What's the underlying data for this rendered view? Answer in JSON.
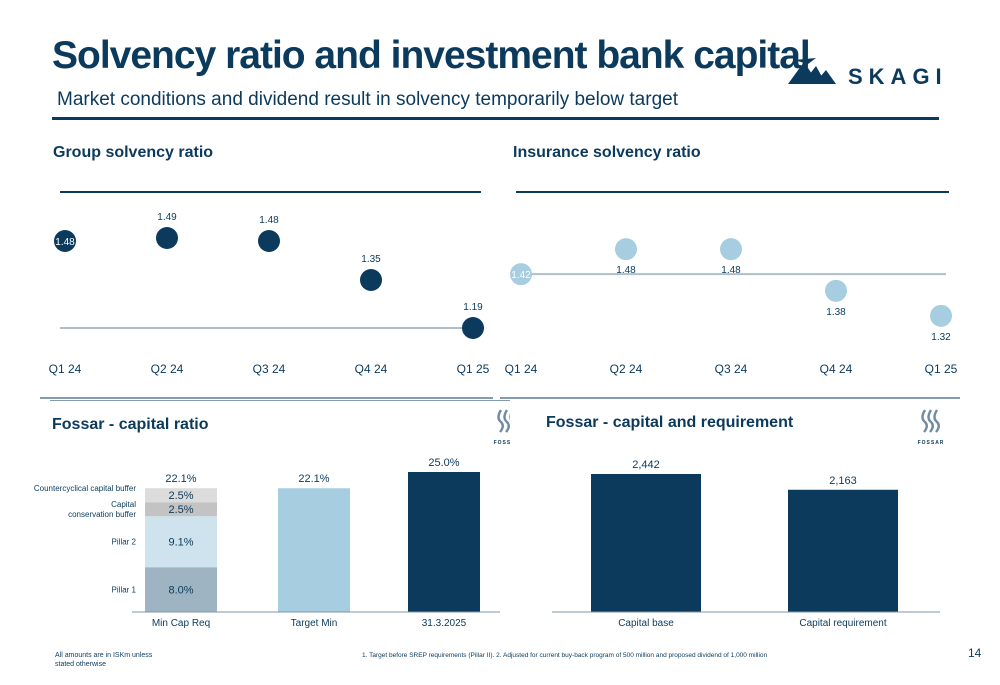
{
  "header": {
    "title": "Solvency ratio and investment bank capital",
    "subtitle": "Market conditions and dividend result in solvency temporarily below target",
    "brand": "SKAGI"
  },
  "colors": {
    "navy": "#0b3a5c",
    "light_blue": "#a6cde0",
    "pale_blue": "#cfe3ee",
    "grey_blue": "#9fb4c2",
    "grey": "#c3c3c3",
    "light_grey": "#dcdcdc",
    "line_grey": "#aebfcc"
  },
  "footer": {
    "note_left": "All amounts are in ISKm unless stated otherwise",
    "note_center": "1. Target before SREP requirements (Pillar II). 2. Adjusted for current buy-back program of 500 million and proposed dividend of 1,000 million",
    "page_number": "14"
  },
  "chart_data": [
    {
      "type": "scatter",
      "title": "Group solvency ratio",
      "categories": [
        "Q1 24",
        "Q2 24",
        "Q3 24",
        "Q4 24",
        "Q1 25"
      ],
      "values": [
        1.48,
        1.49,
        1.48,
        1.35,
        1.19
      ],
      "value_labels": [
        "1.48",
        "1.49",
        "1.48",
        "1.35",
        "1.19"
      ],
      "reference_line": 1.19,
      "ylim": [
        1.1,
        1.55
      ]
    },
    {
      "type": "scatter",
      "title": "Insurance solvency ratio",
      "categories": [
        "Q1 24",
        "Q2 24",
        "Q3 24",
        "Q4 24",
        "Q1 25"
      ],
      "values": [
        1.42,
        1.48,
        1.48,
        1.38,
        1.32
      ],
      "value_labels": [
        "1.42",
        "1.48",
        "1.48",
        "1.38",
        "1.32"
      ],
      "reference_line": 1.42,
      "ylim": [
        1.25,
        1.55
      ]
    },
    {
      "type": "bar",
      "title": "Fossar - capital ratio",
      "brand": "FOSSAR",
      "categories": [
        "Min Cap Req",
        "Target Min",
        "31.3.2025"
      ],
      "stacked_series": [
        {
          "name": "Pillar 1",
          "value": 8.0,
          "label": "8.0%"
        },
        {
          "name": "Pillar 2",
          "value": 9.1,
          "label": "9.1%"
        },
        {
          "name": "Capital conservation buffer",
          "value": 2.5,
          "label": "2.5%"
        },
        {
          "name": "Countercyclical capital buffer",
          "value": 2.5,
          "label": "2.5%"
        }
      ],
      "values": [
        22.1,
        22.1,
        25.0
      ],
      "total_labels": [
        "22.1%",
        "22.1%",
        "25.0%"
      ],
      "ylim": [
        0,
        25
      ]
    },
    {
      "type": "bar",
      "title": "Fossar - capital and requirement",
      "brand": "FOSSAR",
      "categories": [
        "Capital base",
        "Capital requirement"
      ],
      "values": [
        2442,
        2163
      ],
      "value_labels": [
        "2,442",
        "2,163"
      ],
      "ylim": [
        0,
        2442
      ]
    }
  ]
}
